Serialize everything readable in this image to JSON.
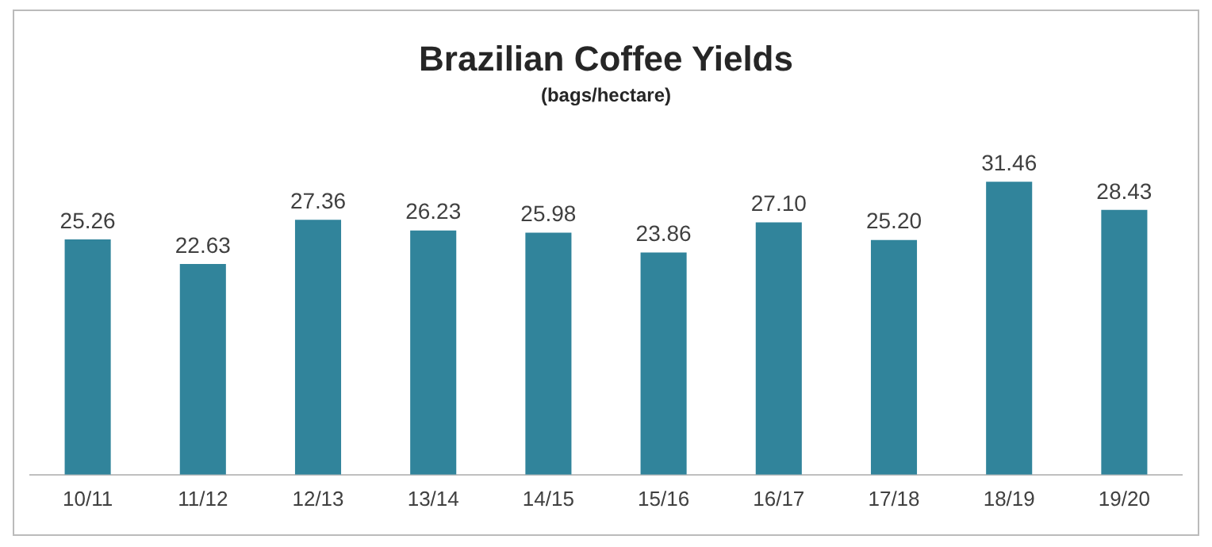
{
  "chart_data": {
    "type": "bar",
    "title": "Brazilian Coffee Yields",
    "subtitle": "(bags/hectare)",
    "categories": [
      "10/11",
      "11/12",
      "12/13",
      "13/14",
      "14/15",
      "15/16",
      "16/17",
      "17/18",
      "18/19",
      "19/20"
    ],
    "values": [
      25.26,
      22.63,
      27.36,
      26.23,
      25.98,
      23.86,
      27.1,
      25.2,
      31.46,
      28.43
    ],
    "value_labels": [
      "25.26",
      "22.63",
      "27.36",
      "26.23",
      "25.98",
      "23.86",
      "27.10",
      "25.20",
      "31.46",
      "28.43"
    ],
    "color": "#31849b",
    "grid": false,
    "legend": false
  }
}
